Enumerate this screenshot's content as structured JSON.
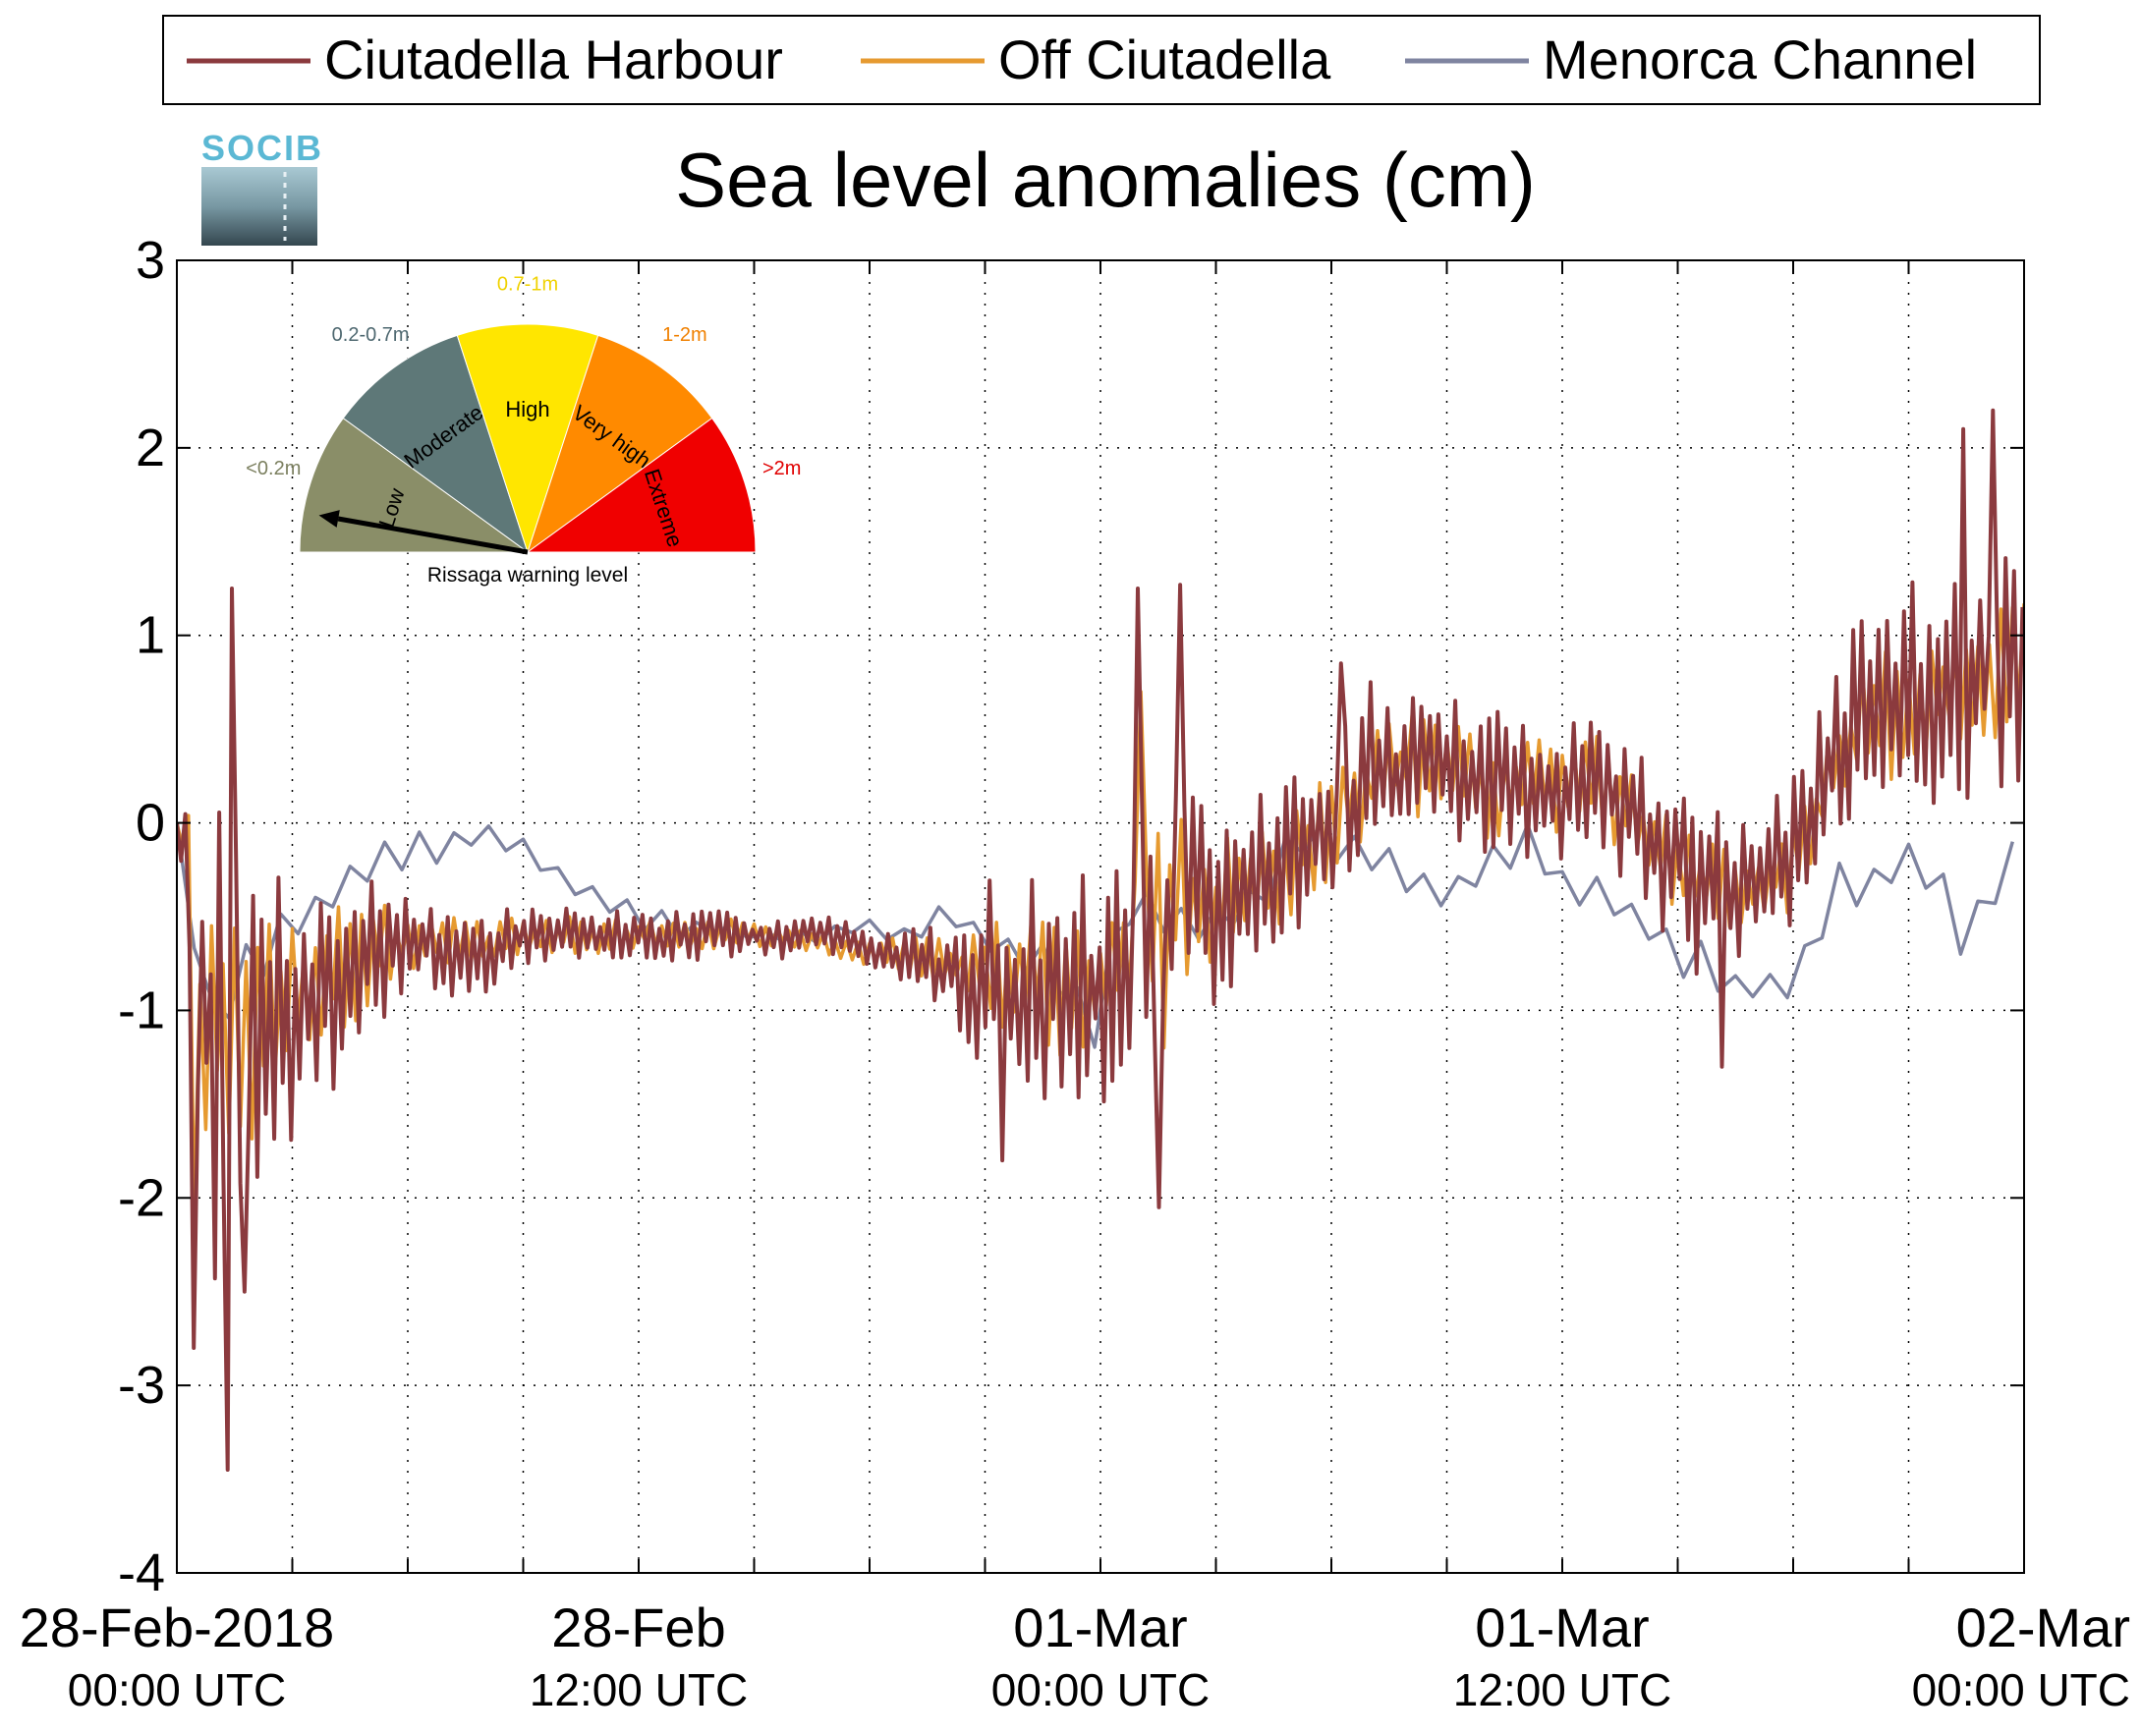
{
  "logo": {
    "text": "SOCIB"
  },
  "chart_data": {
    "type": "line",
    "title": "Sea level anomalies (cm)",
    "ylim": [
      -4,
      3
    ],
    "yticks": [
      3,
      2,
      1,
      0,
      -1,
      -2,
      -3,
      -4
    ],
    "ytick_labels": [
      "3",
      "2",
      "1",
      "0",
      "-1",
      "-2",
      "-3",
      "-4"
    ],
    "xlim_hours": [
      0,
      48
    ],
    "grid": true,
    "legend_position": "top, outside plot, horizontal",
    "xticks": [
      {
        "hour": 0,
        "date": "28-Feb-2018",
        "time": "00:00 UTC"
      },
      {
        "hour": 12,
        "date": "28-Feb",
        "time": "12:00 UTC"
      },
      {
        "hour": 24,
        "date": "01-Mar",
        "time": "00:00 UTC"
      },
      {
        "hour": 36,
        "date": "01-Mar",
        "time": "12:00 UTC"
      },
      {
        "hour": 48,
        "date": "02-Mar",
        "time": "00:00 UTC"
      }
    ],
    "minor_tick_hours": [
      3,
      6,
      9,
      15,
      18,
      21,
      27,
      30,
      33,
      39,
      42,
      45
    ],
    "series": [
      {
        "name": "Ciutadella Harbour",
        "color": "#8B3A3E",
        "baseline": [
          [
            0,
            0
          ],
          [
            0.3,
            -0.2
          ],
          [
            0.6,
            -0.9
          ],
          [
            1.0,
            -1.2
          ],
          [
            1.5,
            -1.0
          ],
          [
            2,
            -1.0
          ],
          [
            3,
            -1.0
          ],
          [
            4,
            -0.9
          ],
          [
            5,
            -0.7
          ],
          [
            6,
            -0.6
          ],
          [
            7,
            -0.7
          ],
          [
            8,
            -0.7
          ],
          [
            9,
            -0.6
          ],
          [
            10,
            -0.6
          ],
          [
            11,
            -0.6
          ],
          [
            12,
            -0.6
          ],
          [
            13,
            -0.6
          ],
          [
            14,
            -0.6
          ],
          [
            15,
            -0.6
          ],
          [
            16,
            -0.6
          ],
          [
            17,
            -0.6
          ],
          [
            18,
            -0.7
          ],
          [
            19,
            -0.7
          ],
          [
            20,
            -0.8
          ],
          [
            21,
            -0.8
          ],
          [
            22,
            -0.9
          ],
          [
            23,
            -0.9
          ],
          [
            24,
            -0.9
          ],
          [
            25,
            -0.6
          ],
          [
            26,
            -0.4
          ],
          [
            27,
            -0.5
          ],
          [
            28,
            -0.3
          ],
          [
            29,
            -0.2
          ],
          [
            30,
            0
          ],
          [
            31,
            0.2
          ],
          [
            32,
            0.3
          ],
          [
            33,
            0.3
          ],
          [
            34,
            0.2
          ],
          [
            35,
            0.2
          ],
          [
            36,
            0.2
          ],
          [
            37,
            0.2
          ],
          [
            38,
            0
          ],
          [
            39,
            -0.2
          ],
          [
            40,
            -0.4
          ],
          [
            41,
            -0.3
          ],
          [
            42,
            -0.2
          ],
          [
            43,
            0.3
          ],
          [
            44,
            0.6
          ],
          [
            45,
            0.6
          ],
          [
            46,
            0.7
          ],
          [
            47,
            0.8
          ],
          [
            48,
            0.9
          ]
        ],
        "amplitude": [
          [
            0,
            0
          ],
          [
            1,
            1.1
          ],
          [
            2,
            0.9
          ],
          [
            3,
            0.6
          ],
          [
            4,
            0.5
          ],
          [
            6,
            0.25
          ],
          [
            9,
            0.15
          ],
          [
            12,
            0.12
          ],
          [
            18,
            0.1
          ],
          [
            20,
            0.2
          ],
          [
            21,
            0.45
          ],
          [
            22,
            0.55
          ],
          [
            24,
            0.55
          ],
          [
            25,
            0.65
          ],
          [
            26,
            0.55
          ],
          [
            27,
            0.45
          ],
          [
            30,
            0.4
          ],
          [
            33,
            0.35
          ],
          [
            36,
            0.35
          ],
          [
            38,
            0.35
          ],
          [
            39,
            0.45
          ],
          [
            40,
            0.45
          ],
          [
            41,
            0.25
          ],
          [
            42,
            0.4
          ],
          [
            44,
            0.55
          ],
          [
            46,
            0.65
          ],
          [
            48,
            0.6
          ]
        ],
        "spikes": [
          [
            1.4,
            1.25
          ],
          [
            1.3,
            -3.45
          ],
          [
            0.4,
            -2.8
          ],
          [
            25.0,
            1.25
          ],
          [
            26.1,
            1.27
          ],
          [
            25.5,
            -2.05
          ],
          [
            1.8,
            -2.5
          ],
          [
            21.4,
            -1.8
          ],
          [
            40.2,
            -1.3
          ],
          [
            46.4,
            2.1
          ],
          [
            47.2,
            2.2
          ],
          [
            39.1,
            -0.3
          ],
          [
            30.3,
            0.85
          ],
          [
            31.0,
            0.75
          ]
        ],
        "wave_period_h": 0.22,
        "seed": 7
      },
      {
        "name": "Off Ciutadella",
        "color": "#E69A30",
        "baseline": [
          [
            0,
            0
          ],
          [
            0.3,
            -0.2
          ],
          [
            0.6,
            -1.0
          ],
          [
            1.0,
            -1.1
          ],
          [
            1.5,
            -1.0
          ],
          [
            2,
            -1.0
          ],
          [
            3,
            -0.9
          ],
          [
            4,
            -0.8
          ],
          [
            5,
            -0.7
          ],
          [
            6,
            -0.6
          ],
          [
            7,
            -0.65
          ],
          [
            8,
            -0.65
          ],
          [
            9,
            -0.6
          ],
          [
            10,
            -0.6
          ],
          [
            11,
            -0.6
          ],
          [
            12,
            -0.6
          ],
          [
            13,
            -0.6
          ],
          [
            14,
            -0.6
          ],
          [
            15,
            -0.6
          ],
          [
            16,
            -0.6
          ],
          [
            17,
            -0.65
          ],
          [
            18,
            -0.7
          ],
          [
            19,
            -0.7
          ],
          [
            20,
            -0.75
          ],
          [
            21,
            -0.8
          ],
          [
            22,
            -0.85
          ],
          [
            23,
            -0.9
          ],
          [
            24,
            -0.9
          ],
          [
            25,
            -0.55
          ],
          [
            26,
            -0.4
          ],
          [
            27,
            -0.45
          ],
          [
            28,
            -0.3
          ],
          [
            29,
            -0.2
          ],
          [
            30,
            0
          ],
          [
            31,
            0.2
          ],
          [
            32,
            0.3
          ],
          [
            33,
            0.3
          ],
          [
            34,
            0.2
          ],
          [
            35,
            0.2
          ],
          [
            36,
            0.2
          ],
          [
            37,
            0.2
          ],
          [
            38,
            0
          ],
          [
            39,
            -0.2
          ],
          [
            40,
            -0.35
          ],
          [
            41,
            -0.35
          ],
          [
            42,
            -0.25
          ],
          [
            43,
            0.25
          ],
          [
            44,
            0.55
          ],
          [
            45,
            0.6
          ],
          [
            46,
            0.7
          ],
          [
            47,
            0.75
          ],
          [
            48,
            0.85
          ]
        ],
        "amplitude": [
          [
            0,
            0
          ],
          [
            1,
            0.8
          ],
          [
            2,
            0.6
          ],
          [
            3,
            0.4
          ],
          [
            4,
            0.35
          ],
          [
            6,
            0.15
          ],
          [
            9,
            0.1
          ],
          [
            12,
            0.08
          ],
          [
            18,
            0.07
          ],
          [
            20,
            0.12
          ],
          [
            21,
            0.25
          ],
          [
            22,
            0.3
          ],
          [
            24,
            0.35
          ],
          [
            25,
            0.45
          ],
          [
            26,
            0.4
          ],
          [
            27,
            0.3
          ],
          [
            30,
            0.25
          ],
          [
            33,
            0.25
          ],
          [
            36,
            0.25
          ],
          [
            38,
            0.2
          ],
          [
            39,
            0.25
          ],
          [
            40,
            0.25
          ],
          [
            41,
            0.15
          ],
          [
            42,
            0.2
          ],
          [
            44,
            0.3
          ],
          [
            46,
            0.35
          ],
          [
            48,
            0.35
          ]
        ],
        "spikes": [
          [
            0.5,
            -2.1
          ],
          [
            25.0,
            0.7
          ],
          [
            25.7,
            -1.2
          ]
        ],
        "wave_period_h": 0.3,
        "seed": 19
      },
      {
        "name": "Menorca Channel",
        "color": "#7F84A0",
        "baseline": [
          [
            0,
            0
          ],
          [
            0.2,
            -0.1
          ],
          [
            0.5,
            -0.7
          ],
          [
            0.8,
            -1.2
          ],
          [
            1.2,
            -0.9
          ],
          [
            2,
            -0.7
          ],
          [
            3,
            -0.55
          ],
          [
            4,
            -0.35
          ],
          [
            5,
            -0.2
          ],
          [
            6,
            -0.15
          ],
          [
            7,
            -0.1
          ],
          [
            8,
            -0.05
          ],
          [
            9,
            -0.15
          ],
          [
            10,
            -0.3
          ],
          [
            11,
            -0.4
          ],
          [
            12,
            -0.5
          ],
          [
            13,
            -0.55
          ],
          [
            14,
            -0.55
          ],
          [
            15,
            -0.6
          ],
          [
            16,
            -0.6
          ],
          [
            17,
            -0.6
          ],
          [
            18,
            -0.55
          ],
          [
            19,
            -0.6
          ],
          [
            20,
            -0.5
          ],
          [
            21,
            -0.6
          ],
          [
            22,
            -0.7
          ],
          [
            23,
            -0.8
          ],
          [
            24,
            -1.1
          ],
          [
            24.5,
            -0.4
          ],
          [
            25,
            -0.4
          ],
          [
            26,
            -0.6
          ],
          [
            27,
            -0.5
          ],
          [
            28,
            -0.4
          ],
          [
            29,
            -0.1
          ],
          [
            30,
            -0.1
          ],
          [
            31,
            -0.2
          ],
          [
            32,
            -0.3
          ],
          [
            33,
            -0.4
          ],
          [
            34,
            -0.2
          ],
          [
            35,
            -0.1
          ],
          [
            36,
            -0.3
          ],
          [
            37,
            -0.4
          ],
          [
            38,
            -0.5
          ],
          [
            39,
            -0.7
          ],
          [
            40,
            -0.8
          ],
          [
            41,
            -0.9
          ],
          [
            42,
            -0.9
          ],
          [
            43,
            -0.35
          ],
          [
            44,
            -0.3
          ],
          [
            45,
            -0.2
          ],
          [
            46,
            -0.4
          ],
          [
            47,
            -0.5
          ],
          [
            48,
            0
          ]
        ],
        "amplitude": [
          [
            0,
            0
          ],
          [
            1,
            0.2
          ],
          [
            3,
            0.12
          ],
          [
            6,
            0.1
          ],
          [
            12,
            0.06
          ],
          [
            18,
            0.05
          ],
          [
            21,
            0.08
          ],
          [
            24,
            0.15
          ],
          [
            26,
            0.12
          ],
          [
            30,
            0.12
          ],
          [
            36,
            0.1
          ],
          [
            42,
            0.12
          ],
          [
            48,
            0.1
          ]
        ],
        "spikes": [
          [
            46.2,
            -0.7
          ],
          [
            47.5,
            -0.1
          ]
        ],
        "wave_period_h": 0.9,
        "seed": 3
      }
    ]
  },
  "gauge": {
    "caption": "Rissaga warning level",
    "needle_level": "Low",
    "segments": [
      {
        "label": "Low",
        "range": "<0.2m",
        "color": "#8A8E68",
        "range_color": "#7C8060"
      },
      {
        "label": "Moderate",
        "range": "0.2-0.7m",
        "color": "#5E7878",
        "range_color": "#4E6870"
      },
      {
        "label": "High",
        "range": "0.7-1m",
        "color": "#FFE600",
        "range_color": "#F0D200"
      },
      {
        "label": "Very high",
        "range": "1-2m",
        "color": "#FF8A00",
        "range_color": "#F08000"
      },
      {
        "label": "Extreme",
        "range": ">2m",
        "color": "#F00000",
        "range_color": "#E00000"
      }
    ]
  }
}
